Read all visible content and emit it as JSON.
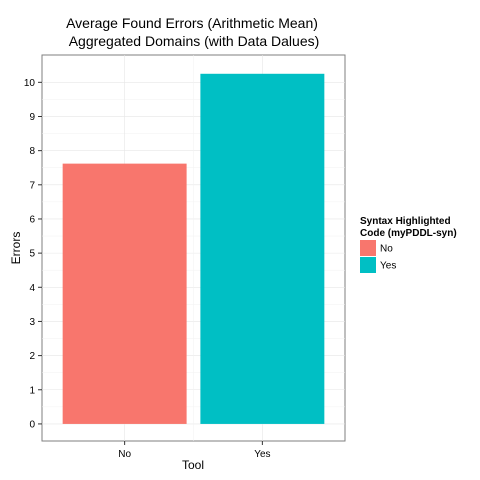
{
  "chart_data": {
    "type": "bar",
    "title_lines": [
      "Average Found Errors (Arithmetic Mean)",
      "Aggregated Domains (with Data Dalues)"
    ],
    "xlabel": "Tool",
    "ylabel": "Errors",
    "categories": [
      "No",
      "Yes"
    ],
    "values": [
      7.62,
      10.25
    ],
    "colors": [
      "#F8766D",
      "#00BFC4"
    ],
    "ylim": [
      -0.5,
      10.8
    ],
    "yticks": [
      "0",
      "1",
      "2",
      "3",
      "4",
      "5",
      "6",
      "7",
      "8",
      "9",
      "10"
    ],
    "grid": true,
    "legend": {
      "title_lines": [
        "Syntax Highlighted",
        "Code (myPDDL-syn)"
      ],
      "position": "right",
      "entries": [
        {
          "label": "No",
          "color": "#F8766D"
        },
        {
          "label": "Yes",
          "color": "#00BFC4"
        }
      ]
    }
  }
}
